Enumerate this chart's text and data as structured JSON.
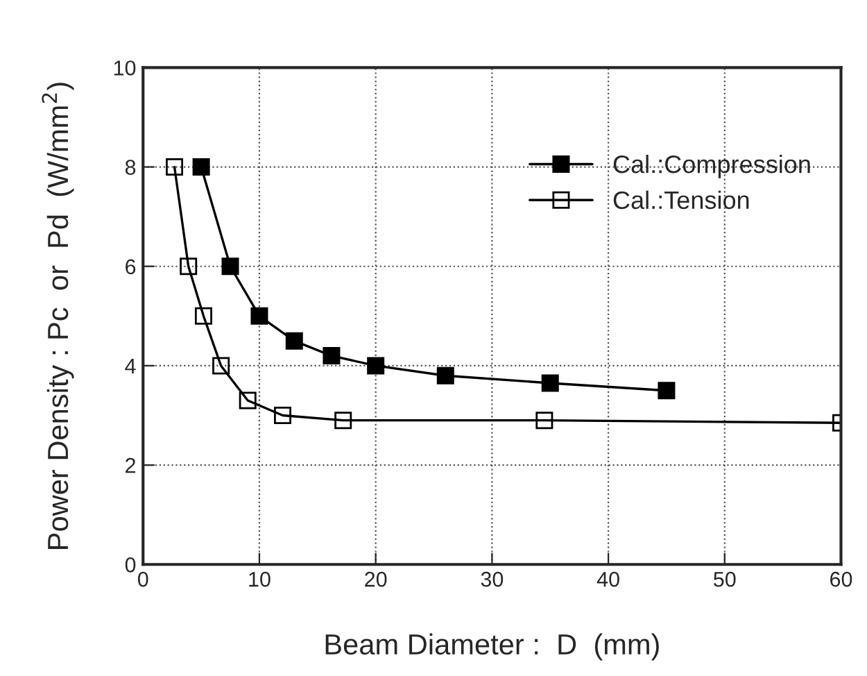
{
  "chart_data": {
    "type": "line",
    "xlabel": "Beam Diameter :  D  (mm)",
    "ylabel": "Power Density : Pc  or  Pd  (W/mm$^{2}$)",
    "xlim": [
      0,
      60
    ],
    "xticks": [
      0,
      10,
      20,
      30,
      40,
      50,
      60
    ],
    "ylim": [
      0,
      10
    ],
    "yticks": [
      0,
      2,
      4,
      6,
      8,
      10
    ],
    "grid": true,
    "legend": "top right",
    "marker": "square",
    "line_style": "solid",
    "series": [
      {
        "name": "Cal.:Compression",
        "color": "#000000",
        "x": [
          5,
          7.5,
          10,
          13,
          16.2,
          20,
          26,
          35,
          45
        ],
        "values": [
          8,
          6,
          5,
          4.5,
          4.2,
          4,
          3.8,
          3.65,
          3.5
        ]
      },
      {
        "name": "Cal.:Tension",
        "color": "#000000",
        "x": [
          2.7,
          3.9,
          5.2,
          6.7,
          9,
          12,
          17.2,
          34.5,
          60
        ],
        "values": [
          8,
          6,
          5,
          4,
          3.3,
          3,
          2.9,
          2.9,
          2.85
        ]
      }
    ]
  }
}
